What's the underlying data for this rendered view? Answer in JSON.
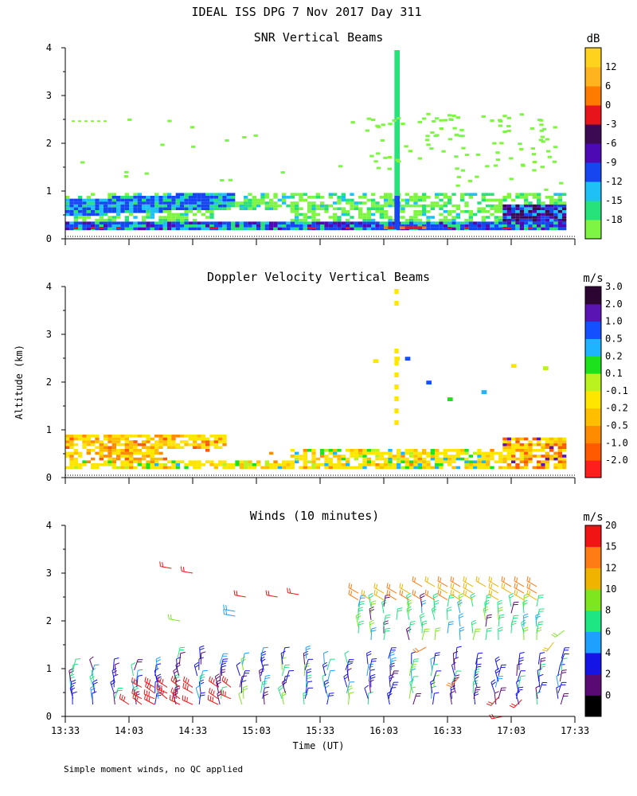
{
  "figure": {
    "main_title": "IDEAL ISS DPG    7 Nov 2017 Day 311",
    "ylabel": "Altitude (km)",
    "xlabel": "Time (UT)",
    "footnote": "Simple moment winds, no QC applied",
    "time_ticks": [
      "13:33",
      "14:03",
      "14:33",
      "15:03",
      "15:33",
      "16:03",
      "16:33",
      "17:03",
      "17:33"
    ],
    "altitude_ticks": [
      "0",
      "1",
      "2",
      "3",
      "4"
    ],
    "xlim_minutes_after_1333": [
      0,
      240
    ],
    "ylim_km": [
      0,
      4
    ]
  },
  "chart_data": [
    {
      "type": "heatmap",
      "title": "SNR Vertical Beams",
      "ylabel": "Altitude (km)",
      "ylim": [
        0,
        4
      ],
      "colorbar": {
        "unit": "dB",
        "levels": [
          "-18",
          "-15",
          "-12",
          "-9",
          "-6",
          "-3",
          "0",
          "6",
          "12"
        ],
        "colors": [
          "#7df542",
          "#27e27b",
          "#1ec0f5",
          "#1646f0",
          "#4d09b3",
          "#3b0a52",
          "#e8141b",
          "#ff7b00",
          "#ffb31e",
          "#ffd21e"
        ]
      },
      "layers": [
        {
          "t": [
            0,
            240
          ],
          "alt": [
            0.15,
            0.3
          ],
          "level": "-6"
        },
        {
          "t": [
            5,
            75
          ],
          "alt": [
            0.5,
            0.8
          ],
          "level": "-9"
        },
        {
          "t": [
            150,
            160
          ],
          "alt": [
            0.2,
            0.4
          ],
          "level": "0"
        },
        {
          "t": [
            155,
            158
          ],
          "alt": [
            0.2,
            3.9
          ],
          "level": "-15"
        },
        {
          "t": [
            205,
            240
          ],
          "alt": [
            0.25,
            0.7
          ],
          "level": "-6"
        }
      ]
    },
    {
      "type": "heatmap",
      "title": "Doppler Velocity Vertical Beams",
      "ylim": [
        0,
        4
      ],
      "colorbar": {
        "unit": "m/s",
        "levels": [
          "-2.0",
          "-1.0",
          "-0.5",
          "-0.2",
          "-0.1",
          "0.1",
          "0.2",
          "0.5",
          "1.0",
          "2.0",
          "3.0"
        ],
        "colors": [
          "#ff1e1e",
          "#ff5a00",
          "#ff8c00",
          "#ffbe00",
          "#ffe600",
          "#b9f21e",
          "#1ee11e",
          "#1eb4ff",
          "#1450ff",
          "#5a14b4",
          "#2d0532"
        ]
      },
      "layers": [
        {
          "t": [
            0,
            240
          ],
          "alt": [
            0.15,
            1.0
          ],
          "level": "-0.1"
        },
        {
          "t": [
            0,
            70
          ],
          "alt": [
            0.4,
            0.8
          ],
          "level": "-0.5"
        },
        {
          "t": [
            205,
            240
          ],
          "alt": [
            0.3,
            0.8
          ],
          "level": "-1.0"
        },
        {
          "t": [
            155,
            158
          ],
          "alt": [
            1.0,
            3.9
          ],
          "level": "-0.1"
        }
      ]
    },
    {
      "type": "wind-barbs",
      "title": "Winds (10 minutes)",
      "ylim": [
        0,
        4
      ],
      "colorbar": {
        "unit": "m/s",
        "levels": [
          "0",
          "2",
          "4",
          "6",
          "8",
          "10",
          "12",
          "15",
          "20"
        ],
        "colors": [
          "#000000",
          "#5a0a73",
          "#1414e6",
          "#1ea0ff",
          "#1ee682",
          "#7ee61e",
          "#f0b400",
          "#ff7b14",
          "#f01414"
        ]
      },
      "profiles": [
        {
          "t": 5,
          "alt": [
            0.2,
            1.3
          ],
          "speed_m_s": "4-8"
        },
        {
          "t": 40,
          "alt": [
            0.2,
            1.3
          ],
          "speed_m_s": "2-8"
        },
        {
          "t": 55,
          "alt": [
            0.2,
            0.6
          ],
          "speed_m_s": "20"
        },
        {
          "t": 158,
          "alt": [
            1.8,
            2.8
          ],
          "speed_m_s": "10-15"
        },
        {
          "t": 190,
          "alt": [
            1.5,
            2.6
          ],
          "speed_m_s": "10-12"
        },
        {
          "t": 225,
          "alt": [
            2.3,
            2.7
          ],
          "speed_m_s": "12-15"
        }
      ]
    }
  ]
}
